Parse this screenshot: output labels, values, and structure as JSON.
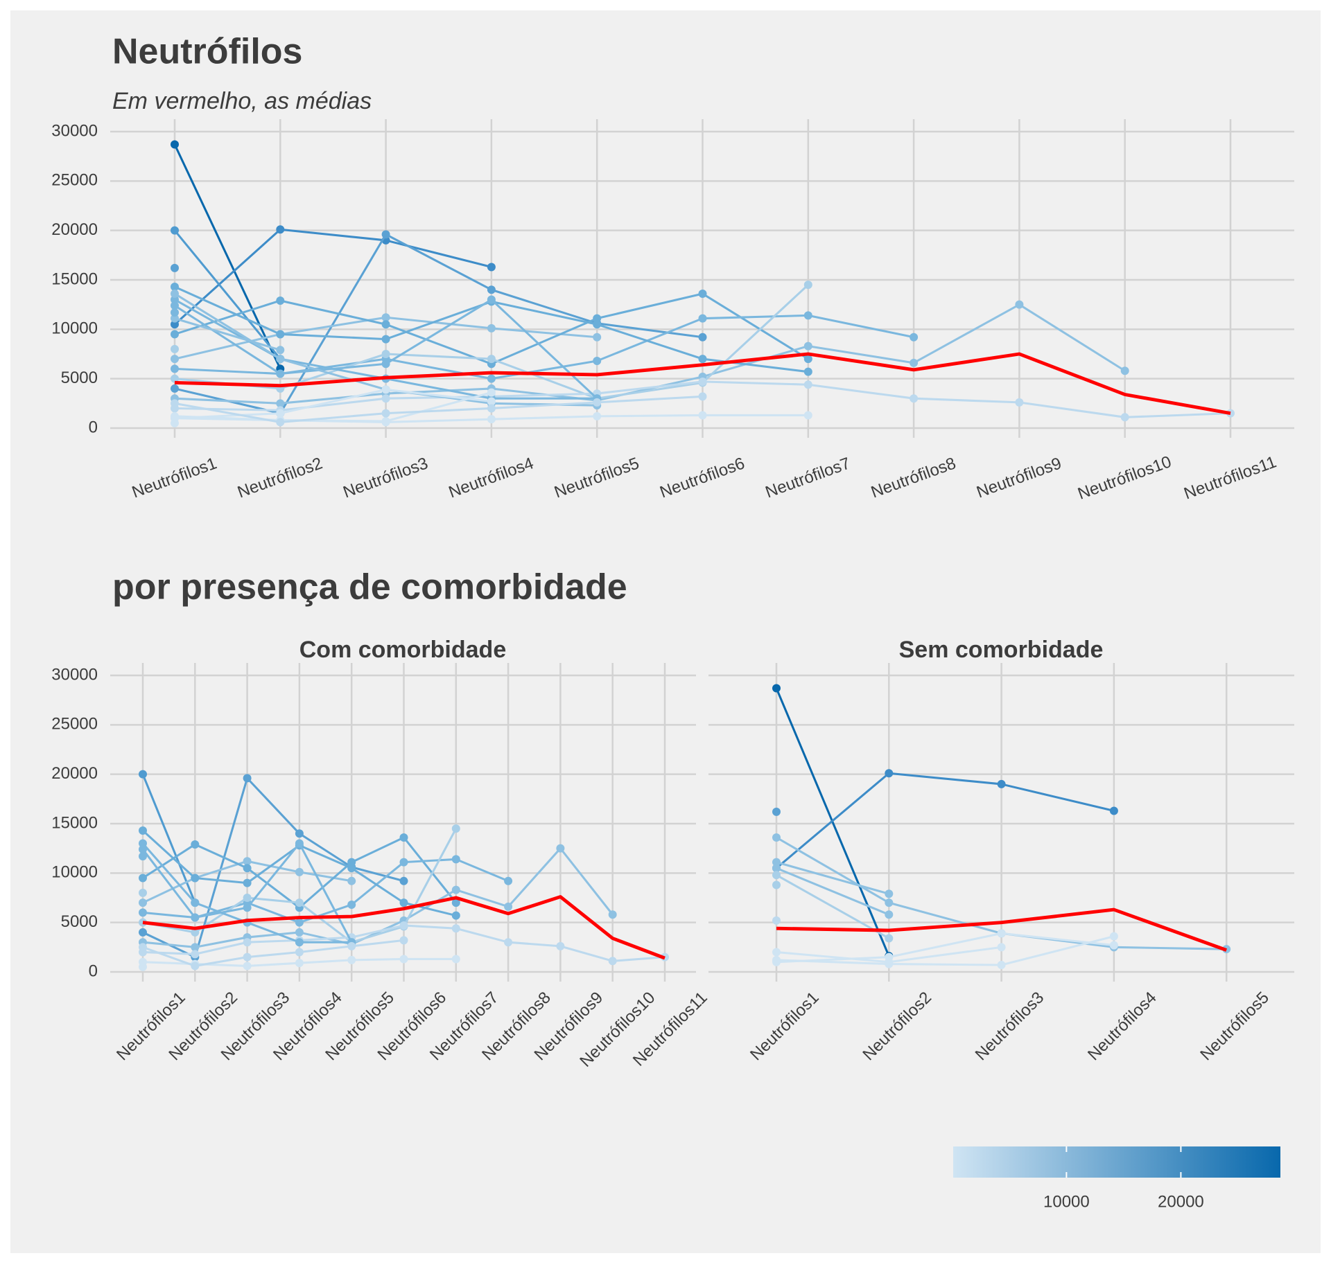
{
  "chart_data": [
    {
      "type": "line",
      "title": "Neutrófilos",
      "subtitle": "Em vermelho, as médias",
      "categories": [
        "Neutrófilos1",
        "Neutrófilos2",
        "Neutrófilos3",
        "Neutrófilos4",
        "Neutrófilos5",
        "Neutrófilos6",
        "Neutrófilos7",
        "Neutrófilos8",
        "Neutrófilos9",
        "Neutrófilos10",
        "Neutrófilos11"
      ],
      "ylim": [
        0,
        30000
      ],
      "yticks": [
        0,
        5000,
        10000,
        15000,
        20000,
        25000,
        30000
      ],
      "grid": true,
      "series": [
        {
          "color": "#0868ac",
          "width": 2.5,
          "markers": true,
          "values": [
            28700,
            6000,
            null,
            null,
            null,
            null,
            null,
            null,
            null,
            null,
            null
          ]
        },
        {
          "color": "#3d8cc8",
          "width": 2.5,
          "markers": true,
          "values": [
            10500,
            20100,
            19000,
            16300,
            null,
            null,
            null,
            null,
            null,
            null,
            null
          ]
        },
        {
          "color": "#4f9bd0",
          "width": 2.5,
          "markers": true,
          "values": [
            20000,
            7000,
            null,
            null,
            null,
            null,
            null,
            null,
            null,
            null,
            null
          ]
        },
        {
          "color": "#5aa1d3",
          "width": 2.5,
          "markers": true,
          "values": [
            4000,
            1500,
            19600,
            14000,
            10600,
            9200,
            null,
            null,
            null,
            null,
            null
          ]
        },
        {
          "color": "#8ec1e2",
          "width": 2.5,
          "markers": true,
          "values": [
            7000,
            9500,
            11200,
            10100,
            9200,
            null,
            null,
            null,
            null,
            null,
            null
          ]
        },
        {
          "color": "#6aaed9",
          "width": 2.5,
          "markers": true,
          "values": [
            9500,
            12900,
            10500,
            6500,
            11100,
            13600,
            7000,
            null,
            null,
            null,
            null
          ]
        },
        {
          "color": "#7ab7de",
          "width": 2.5,
          "markers": true,
          "values": [
            6000,
            5500,
            7000,
            5000,
            6800,
            11100,
            11400,
            9200,
            null,
            null,
            null
          ]
        },
        {
          "color": "#8ec1e2",
          "width": 2.5,
          "markers": true,
          "values": [
            3000,
            2500,
            3500,
            4000,
            2800,
            5200,
            8300,
            6600,
            12500,
            5800,
            null
          ]
        },
        {
          "color": "#a8cfe8",
          "width": 2.5,
          "markers": true,
          "values": [
            5000,
            4000,
            7500,
            7000,
            3000,
            4600,
            14500,
            null,
            null,
            null,
            null
          ]
        },
        {
          "color": "#bcd9ee",
          "width": 2.5,
          "markers": true,
          "values": [
            2000,
            1800,
            3000,
            3200,
            3500,
            4700,
            4400,
            3000,
            2600,
            1100,
            1500
          ]
        },
        {
          "color": "#cfe4f3",
          "width": 2.5,
          "markers": true,
          "values": [
            1000,
            800,
            600,
            900,
            1200,
            1300,
            1300,
            null,
            null,
            null,
            null
          ]
        },
        {
          "color": "#6aaed9",
          "width": 2.5,
          "markers": true,
          "values": [
            14300,
            9500,
            9000,
            12800,
            10500,
            7000,
            5700,
            null,
            null,
            null,
            null
          ]
        },
        {
          "color": "#7ab7de",
          "width": 2.5,
          "markers": true,
          "values": [
            13000,
            7000,
            5000,
            3000,
            3000,
            null,
            null,
            null,
            null,
            null,
            null
          ]
        },
        {
          "color": "#7ab7de",
          "width": 2.5,
          "markers": true,
          "values": [
            12400,
            5500,
            6500,
            13000,
            3000,
            null,
            null,
            null,
            null,
            null,
            null
          ]
        },
        {
          "color": "#8ec1e2",
          "width": 2.5,
          "markers": true,
          "values": [
            13600,
            7000,
            3900,
            2500,
            2300,
            null,
            null,
            null,
            null,
            null,
            null
          ]
        },
        {
          "color": "#8ec1e2",
          "width": 2.5,
          "markers": true,
          "values": [
            11100,
            7900,
            null,
            null,
            null,
            null,
            null,
            null,
            null,
            null,
            null
          ]
        },
        {
          "color": "#cfe4f3",
          "width": 2.5,
          "markers": true,
          "values": [
            1200,
            800,
            700,
            3600,
            null,
            null,
            null,
            null,
            null,
            null,
            null
          ]
        },
        {
          "color": "#cfe4f3",
          "width": 2.5,
          "markers": true,
          "values": [
            1000,
            1500,
            3900,
            2700,
            null,
            null,
            null,
            null,
            null,
            null,
            null
          ]
        },
        {
          "color": "#5aa1d3",
          "width": 2.5,
          "markers": true,
          "values": [
            16200,
            null,
            null,
            null,
            null,
            null,
            null,
            null,
            null,
            null,
            null
          ]
        },
        {
          "color": "#7ab7de",
          "width": 2.5,
          "markers": true,
          "values": [
            11700,
            null,
            null,
            null,
            null,
            null,
            null,
            null,
            null,
            null,
            null
          ]
        },
        {
          "color": "#a8cfe8",
          "width": 2.5,
          "markers": true,
          "values": [
            8000,
            null,
            null,
            null,
            null,
            null,
            null,
            null,
            null,
            null,
            null
          ]
        },
        {
          "color": "#cfe4f3",
          "width": 2.5,
          "markers": true,
          "values": [
            500,
            null,
            null,
            null,
            null,
            null,
            null,
            null,
            null,
            null,
            null
          ]
        },
        {
          "color": "#bcd9ee",
          "width": 2.5,
          "markers": true,
          "values": [
            2500,
            600,
            1500,
            2000,
            2600,
            3200,
            null,
            null,
            null,
            null,
            null
          ]
        },
        {
          "color": "#ff0000",
          "width": 4,
          "markers": false,
          "values": [
            4600,
            4300,
            5100,
            5600,
            5400,
            6400,
            7500,
            5900,
            7500,
            3400,
            1500
          ]
        }
      ]
    },
    {
      "type": "line",
      "section_title": "por presença de comorbidade",
      "title": "Com comorbidade",
      "categories": [
        "Neutrófilos1",
        "Neutrófilos2",
        "Neutrófilos3",
        "Neutrófilos4",
        "Neutrófilos5",
        "Neutrófilos6",
        "Neutrófilos7",
        "Neutrófilos8",
        "Neutrófilos9",
        "Neutrófilos10",
        "Neutrófilos11"
      ],
      "ylim": [
        0,
        30000
      ],
      "yticks": [
        0,
        5000,
        10000,
        15000,
        20000,
        25000,
        30000
      ],
      "grid": true,
      "series": [
        {
          "color": "#4f9bd0",
          "width": 2.5,
          "markers": true,
          "values": [
            20000,
            7000,
            null,
            null,
            null,
            null,
            null,
            null,
            null,
            null,
            null
          ]
        },
        {
          "color": "#5aa1d3",
          "width": 2.5,
          "markers": true,
          "values": [
            4000,
            1500,
            19600,
            14000,
            10600,
            9200,
            null,
            null,
            null,
            null,
            null
          ]
        },
        {
          "color": "#8ec1e2",
          "width": 2.5,
          "markers": true,
          "values": [
            7000,
            9500,
            11200,
            10100,
            9200,
            null,
            null,
            null,
            null,
            null,
            null
          ]
        },
        {
          "color": "#6aaed9",
          "width": 2.5,
          "markers": true,
          "values": [
            9500,
            12900,
            10500,
            6500,
            11100,
            13600,
            7000,
            null,
            null,
            null,
            null
          ]
        },
        {
          "color": "#7ab7de",
          "width": 2.5,
          "markers": true,
          "values": [
            6000,
            5500,
            7000,
            5000,
            6800,
            11100,
            11400,
            9200,
            null,
            null,
            null
          ]
        },
        {
          "color": "#8ec1e2",
          "width": 2.5,
          "markers": true,
          "values": [
            3000,
            2500,
            3500,
            4000,
            2800,
            5200,
            8300,
            6600,
            12500,
            5800,
            null
          ]
        },
        {
          "color": "#a8cfe8",
          "width": 2.5,
          "markers": true,
          "values": [
            5000,
            4000,
            7500,
            7000,
            3000,
            4600,
            14500,
            null,
            null,
            null,
            null
          ]
        },
        {
          "color": "#bcd9ee",
          "width": 2.5,
          "markers": true,
          "values": [
            2000,
            1800,
            3000,
            3200,
            3500,
            4700,
            4400,
            3000,
            2600,
            1100,
            1500
          ]
        },
        {
          "color": "#cfe4f3",
          "width": 2.5,
          "markers": true,
          "values": [
            1000,
            800,
            600,
            900,
            1200,
            1300,
            1300,
            null,
            null,
            null,
            null
          ]
        },
        {
          "color": "#6aaed9",
          "width": 2.5,
          "markers": true,
          "values": [
            14300,
            9500,
            9000,
            12800,
            10500,
            7000,
            5700,
            null,
            null,
            null,
            null
          ]
        },
        {
          "color": "#7ab7de",
          "width": 2.5,
          "markers": true,
          "values": [
            13000,
            7000,
            5000,
            3000,
            3000,
            null,
            null,
            null,
            null,
            null,
            null
          ]
        },
        {
          "color": "#7ab7de",
          "width": 2.5,
          "markers": true,
          "values": [
            12400,
            5500,
            6500,
            13000,
            3000,
            null,
            null,
            null,
            null,
            null,
            null
          ]
        },
        {
          "color": "#7ab7de",
          "width": 2.5,
          "markers": true,
          "values": [
            11700,
            null,
            null,
            null,
            null,
            null,
            null,
            null,
            null,
            null,
            null
          ]
        },
        {
          "color": "#a8cfe8",
          "width": 2.5,
          "markers": true,
          "values": [
            8000,
            null,
            null,
            null,
            null,
            null,
            null,
            null,
            null,
            null,
            null
          ]
        },
        {
          "color": "#cfe4f3",
          "width": 2.5,
          "markers": true,
          "values": [
            500,
            null,
            null,
            null,
            null,
            null,
            null,
            null,
            null,
            null,
            null
          ]
        },
        {
          "color": "#bcd9ee",
          "width": 2.5,
          "markers": true,
          "values": [
            2500,
            600,
            1500,
            2000,
            2600,
            3200,
            null,
            null,
            null,
            null,
            null
          ]
        },
        {
          "color": "#ff0000",
          "width": 4,
          "markers": false,
          "values": [
            5000,
            4400,
            5200,
            5500,
            5600,
            6400,
            7500,
            5900,
            7600,
            3400,
            1400
          ]
        }
      ]
    },
    {
      "type": "line",
      "title": "Sem comorbidade",
      "categories": [
        "Neutrófilos1",
        "Neutrófilos2",
        "Neutrófilos3",
        "Neutrófilos4",
        "Neutrófilos5"
      ],
      "ylim": [
        0,
        30000
      ],
      "yticks": [
        0,
        5000,
        10000,
        15000,
        20000,
        25000,
        30000
      ],
      "grid": true,
      "series": [
        {
          "color": "#0868ac",
          "width": 2.5,
          "markers": true,
          "values": [
            28700,
            1600,
            null,
            null,
            null
          ]
        },
        {
          "color": "#3d8cc8",
          "width": 2.5,
          "markers": true,
          "values": [
            10500,
            20100,
            19000,
            16300,
            null
          ]
        },
        {
          "color": "#8ec1e2",
          "width": 2.5,
          "markers": true,
          "values": [
            13600,
            7000,
            3900,
            2500,
            2300
          ]
        },
        {
          "color": "#8ec1e2",
          "width": 2.5,
          "markers": true,
          "values": [
            11100,
            7900,
            null,
            null,
            null
          ]
        },
        {
          "color": "#8ec1e2",
          "width": 2.5,
          "markers": true,
          "values": [
            10500,
            5800,
            null,
            null,
            null
          ]
        },
        {
          "color": "#a8cfe8",
          "width": 2.5,
          "markers": true,
          "values": [
            9800,
            3400,
            null,
            null,
            null
          ]
        },
        {
          "color": "#cfe4f3",
          "width": 2.5,
          "markers": true,
          "values": [
            1200,
            800,
            700,
            3600,
            null
          ]
        },
        {
          "color": "#cfe4f3",
          "width": 2.5,
          "markers": true,
          "values": [
            1000,
            1500,
            3900,
            2700,
            null
          ]
        },
        {
          "color": "#cfe4f3",
          "width": 2.5,
          "markers": true,
          "values": [
            2000,
            1000,
            2500,
            null,
            null
          ]
        },
        {
          "color": "#5aa1d3",
          "width": 2.5,
          "markers": true,
          "values": [
            16200,
            null,
            null,
            null,
            null
          ]
        },
        {
          "color": "#a8cfe8",
          "width": 2.5,
          "markers": true,
          "values": [
            8800,
            null,
            null,
            null,
            null
          ]
        },
        {
          "color": "#bcd9ee",
          "width": 2.5,
          "markers": true,
          "values": [
            5200,
            null,
            null,
            null,
            null
          ]
        },
        {
          "color": "#ff0000",
          "width": 4,
          "markers": false,
          "values": [
            4400,
            4200,
            5000,
            6300,
            2200
          ]
        }
      ]
    },
    {
      "type": "colorbar",
      "colors": [
        "#cfe4f3",
        "#0868ac"
      ],
      "lim": [
        100,
        28700
      ],
      "ticks": [
        10000,
        20000
      ]
    }
  ]
}
